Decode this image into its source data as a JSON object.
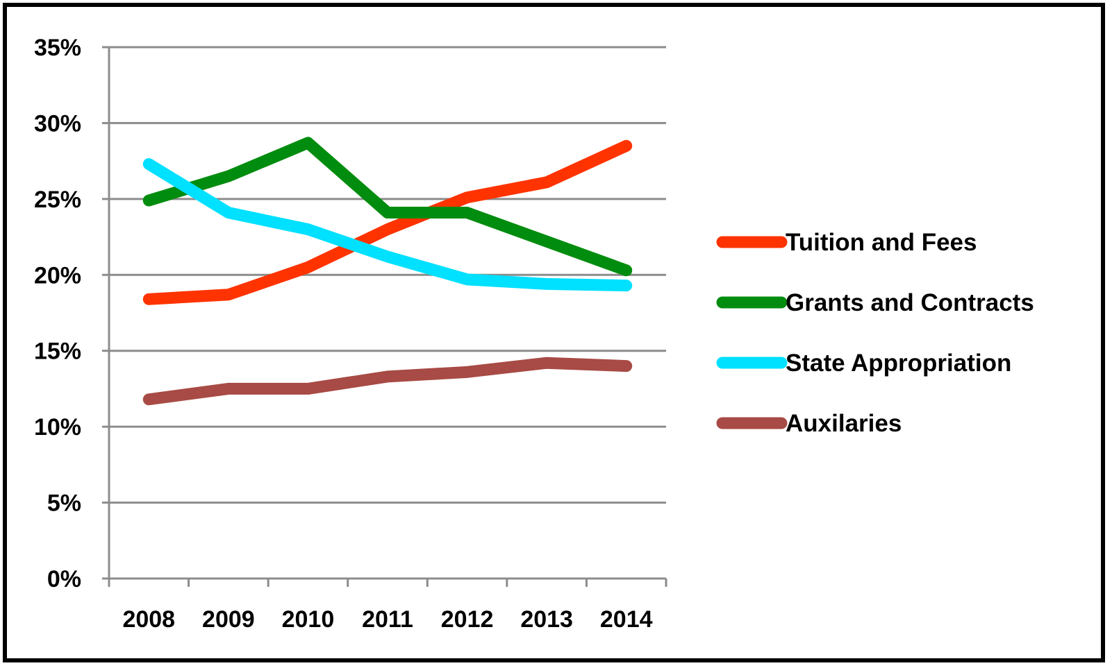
{
  "chart_data": {
    "type": "line",
    "title": "",
    "xlabel": "",
    "ylabel": "",
    "categories": [
      "2008",
      "2009",
      "2010",
      "2011",
      "2012",
      "2013",
      "2014"
    ],
    "ylim": [
      0,
      35
    ],
    "y_ticks": [
      0,
      5,
      10,
      15,
      20,
      25,
      30,
      35
    ],
    "y_tick_labels": [
      "0%",
      "5%",
      "10%",
      "15%",
      "20%",
      "25%",
      "30%",
      "35%"
    ],
    "grid": true,
    "legend_position": "right",
    "series": [
      {
        "name": "Tuition and Fees",
        "color": "#ff3300",
        "values": [
          18.4,
          18.7,
          20.5,
          23.0,
          25.1,
          26.1,
          28.5
        ]
      },
      {
        "name": "Grants and Contracts",
        "color": "#008c0e",
        "values": [
          24.9,
          26.5,
          28.7,
          24.1,
          24.1,
          22.2,
          20.3
        ]
      },
      {
        "name": "State Appropriation",
        "color": "#00e0ff",
        "values": [
          27.3,
          24.1,
          23.0,
          21.2,
          19.7,
          19.4,
          19.3
        ]
      },
      {
        "name": "Auxilaries",
        "color": "#a84a45",
        "values": [
          11.8,
          12.5,
          12.5,
          13.3,
          13.6,
          14.2,
          14.0
        ]
      }
    ]
  }
}
